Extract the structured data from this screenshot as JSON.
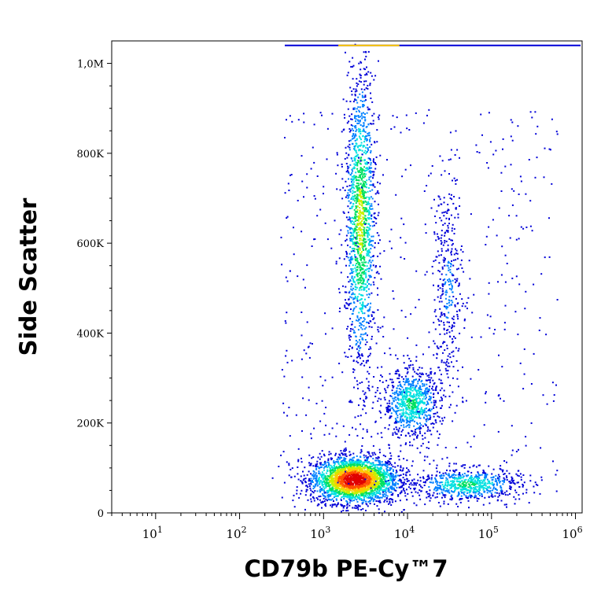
{
  "chart_data": {
    "type": "heatmap",
    "subtype": "flow-cytometry-density-dot-plot",
    "title": "",
    "xlabel": "CD79b PE-Cy™7",
    "ylabel": "Side Scatter",
    "x_scale": "log",
    "xlim": [
      3,
      1200000
    ],
    "ylim": [
      0,
      1050000
    ],
    "x_ticks": [
      {
        "value": 10,
        "base": "10",
        "exp": "1"
      },
      {
        "value": 100,
        "base": "10",
        "exp": "2"
      },
      {
        "value": 1000,
        "base": "10",
        "exp": "3"
      },
      {
        "value": 10000,
        "base": "10",
        "exp": "4"
      },
      {
        "value": 100000,
        "base": "10",
        "exp": "5"
      },
      {
        "value": 1000000,
        "base": "10",
        "exp": "6"
      }
    ],
    "y_ticks": [
      {
        "value": 0,
        "label": "0"
      },
      {
        "value": 200000,
        "label": "200K"
      },
      {
        "value": 400000,
        "label": "400K"
      },
      {
        "value": 600000,
        "label": "600K"
      },
      {
        "value": 800000,
        "label": "800K"
      },
      {
        "value": 1000000,
        "label": "1,0M"
      }
    ],
    "grid": false,
    "legend": "none",
    "color_scale": [
      "#0000d8",
      "#0080ff",
      "#00e0e0",
      "#00e060",
      "#c8f000",
      "#ffc800",
      "#ff5000",
      "#e00000"
    ],
    "populations": [
      {
        "x_center": 2300,
        "y_center": 75000,
        "x_spread_decades": 0.26,
        "y_spread": 26000,
        "peak_density": 1.0
      },
      {
        "x_center": 2700,
        "y_center": 650000,
        "x_spread_decades": 0.09,
        "y_spread": 170000,
        "peak_density": 0.55
      },
      {
        "x_center": 11000,
        "y_center": 245000,
        "x_spread_decades": 0.17,
        "y_spread": 38000,
        "peak_density": 0.4
      },
      {
        "x_center": 30000,
        "y_center": 500000,
        "x_spread_decades": 0.09,
        "y_spread": 120000,
        "peak_density": 0.15
      },
      {
        "x_center": 50000,
        "y_center": 65000,
        "x_spread_decades": 0.32,
        "y_spread": 18000,
        "peak_density": 0.4
      }
    ],
    "saturation_line_y": 1040000
  }
}
